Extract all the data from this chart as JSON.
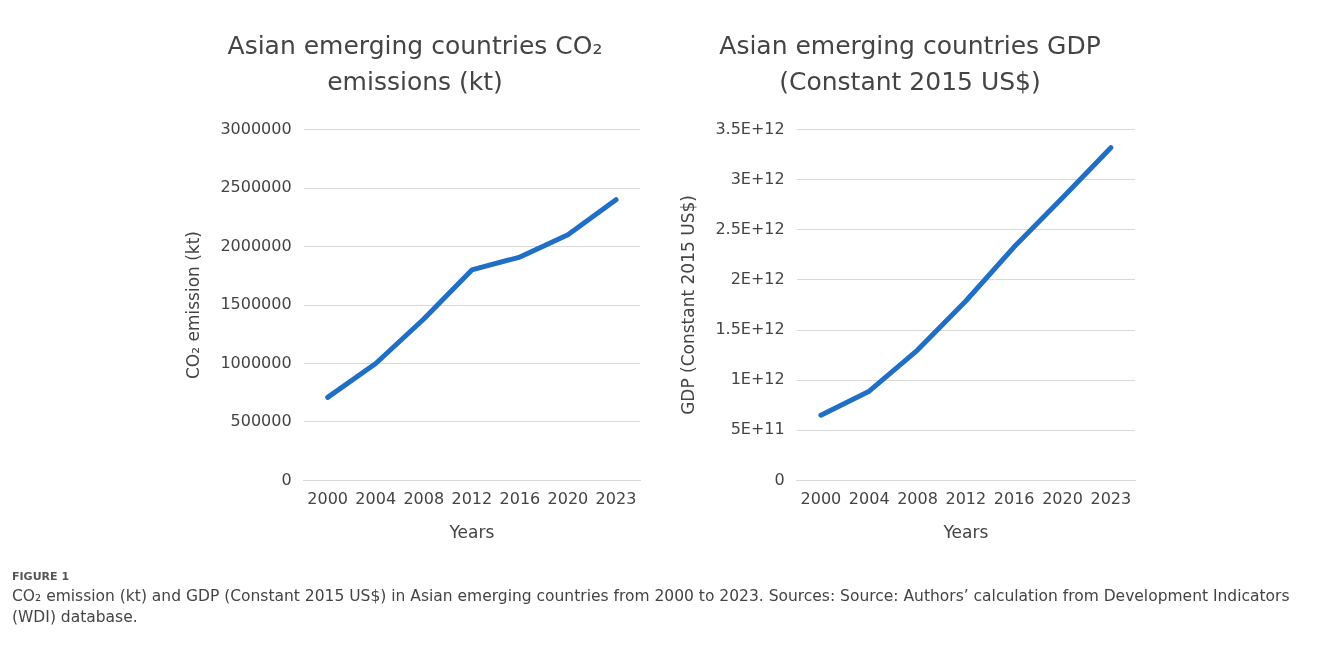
{
  "chart_data": [
    {
      "type": "line",
      "title": "Asian emerging countries CO₂ emissions (kt)",
      "xlabel": "Years",
      "ylabel": "CO₂ emission (kt)",
      "categories": [
        "2000",
        "2004",
        "2008",
        "2012",
        "2016",
        "2020",
        "2023"
      ],
      "series": [
        {
          "color": "#1f6fc6",
          "values": [
            710000,
            1000000,
            1380000,
            1800000,
            1910000,
            2100000,
            2400000
          ]
        }
      ],
      "ylim": [
        0,
        3000000
      ],
      "yticks": [
        0,
        500000,
        1000000,
        1500000,
        2000000,
        2500000,
        3000000
      ],
      "grid": "y",
      "legend": false,
      "marker": "none",
      "annotations": [
        "FIGURE 1",
        "CO₂ emission (kt) and GDP (Constant 2015 US$) in Asian emerging countries from 2000 to 2023. Sources: Source: Authors’ calculation from Development Indicators (WDI) database."
      ]
    },
    {
      "type": "line",
      "title": "Asian emerging countries GDP (Constant 2015 US$)",
      "xlabel": "Years",
      "ylabel": "GDP (Constant 2015 US$)",
      "categories": [
        "2000",
        "2004",
        "2008",
        "2012",
        "2016",
        "2020",
        "2023"
      ],
      "series": [
        {
          "color": "#1f6fc6",
          "values": [
            650000000000,
            890000000000,
            1300000000000,
            1790000000000,
            2330000000000,
            2820000000000,
            3320000000000
          ]
        }
      ],
      "ylim": [
        0,
        3500000000000
      ],
      "yticks": [
        0,
        {
          "value": 500000000000,
          "label": "5E+11"
        },
        {
          "value": 1000000000000,
          "label": "1E+12"
        },
        {
          "value": 1500000000000,
          "label": "1.5E+12"
        },
        {
          "value": 2000000000000,
          "label": "2E+12"
        },
        {
          "value": 2500000000000,
          "label": "2.5E+12"
        },
        {
          "value": 3000000000000,
          "label": "3E+12"
        },
        {
          "value": 3500000000000,
          "label": "3.5E+12"
        }
      ],
      "grid": "y",
      "legend": false,
      "marker": "none"
    }
  ]
}
